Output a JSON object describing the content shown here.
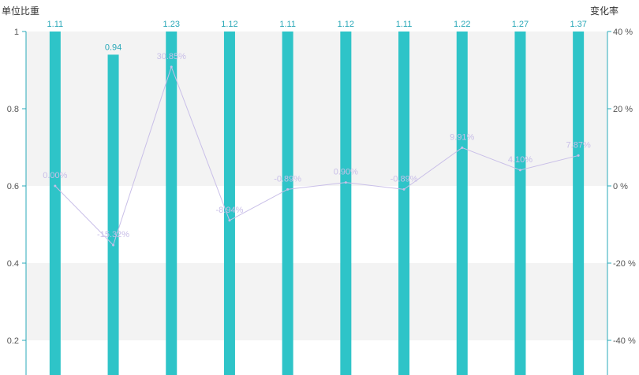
{
  "chart_data": {
    "type": "bar",
    "y_left": {
      "name": "单位比重",
      "ticks": [
        "0.2",
        "0.4",
        "0.6",
        "0.8",
        "1"
      ],
      "tick_values": [
        0.2,
        0.4,
        0.6,
        0.8,
        1.0
      ]
    },
    "y_right": {
      "name": "变化率",
      "ticks": [
        "-40 %",
        "-20 %",
        "0 %",
        "20 %",
        "40 %"
      ],
      "tick_values": [
        -40,
        -20,
        0,
        20,
        40
      ]
    },
    "series": [
      {
        "type": "bar",
        "values": [
          1.11,
          0.94,
          1.23,
          1.12,
          1.11,
          1.12,
          1.11,
          1.22,
          1.27,
          1.37
        ],
        "labels": [
          "1.11",
          "0.94",
          "1.23",
          "1.12",
          "1.11",
          "1.12",
          "1.11",
          "1.22",
          "1.27",
          "1.37"
        ],
        "color": "#2ec4c8"
      },
      {
        "type": "line",
        "values": [
          0.0,
          -15.32,
          30.85,
          -8.94,
          -0.89,
          0.9,
          -0.89,
          9.91,
          4.1,
          7.87
        ],
        "labels": [
          "0.00%",
          "-15.32%",
          "30.85%",
          "-8.94%",
          "-0.89%",
          "0.90%",
          "-0.89%",
          "9.91%",
          "4.10%",
          "7.87%"
        ],
        "color": "#c9bfe8"
      }
    ],
    "grid_bands": [
      [
        0.8,
        1.0
      ],
      [
        0.6,
        0.8
      ],
      [
        0.2,
        0.4
      ]
    ],
    "colors": {
      "band": "#f3f3f3",
      "axis": "#2aa8b8",
      "bar": "#2ec4c8",
      "line": "#c9bfe8"
    }
  }
}
